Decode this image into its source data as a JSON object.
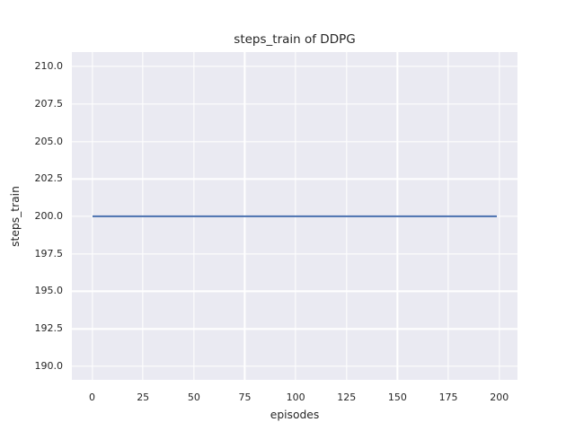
{
  "chart_data": {
    "type": "line",
    "title": "steps_train of DDPG",
    "xlabel": "episodes",
    "ylabel": "steps_train",
    "x_tick_values": [
      0,
      25,
      50,
      75,
      100,
      125,
      150,
      175,
      200
    ],
    "x_tick_labels": [
      "0",
      "25",
      "50",
      "75",
      "100",
      "125",
      "150",
      "175",
      "200"
    ],
    "y_tick_values": [
      190.0,
      192.5,
      195.0,
      197.5,
      200.0,
      202.5,
      205.0,
      207.5,
      210.0
    ],
    "y_tick_labels": [
      "190.0",
      "192.5",
      "195.0",
      "197.5",
      "200.0",
      "202.5",
      "205.0",
      "207.5",
      "210.0"
    ],
    "xlim": [
      -9.95,
      208.95
    ],
    "ylim": [
      189.1,
      210.96
    ],
    "grid": true,
    "legend": null,
    "series": [
      {
        "name": "steps_train",
        "color": "#4c72b0",
        "x": [
          0,
          199
        ],
        "y": [
          200,
          200
        ],
        "description": "constant line at 200 steps for every episode from 0 to 199"
      }
    ],
    "colors": {
      "plot_background": "#eaeaf2",
      "gridline": "#ffffff",
      "figure_background": "#ffffff",
      "text": "#262626"
    }
  }
}
